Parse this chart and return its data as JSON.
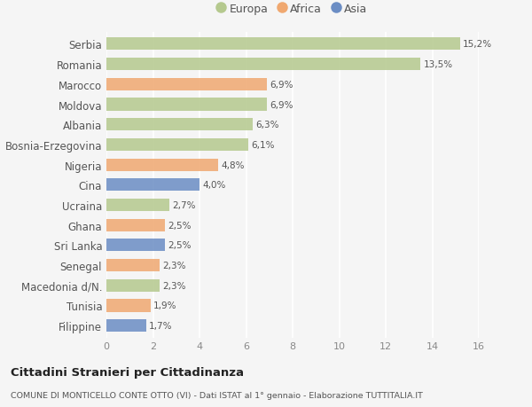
{
  "countries": [
    "Serbia",
    "Romania",
    "Marocco",
    "Moldova",
    "Albania",
    "Bosnia-Erzegovina",
    "Nigeria",
    "Cina",
    "Ucraina",
    "Ghana",
    "Sri Lanka",
    "Senegal",
    "Macedonia d/N.",
    "Tunisia",
    "Filippine"
  ],
  "values": [
    15.2,
    13.5,
    6.9,
    6.9,
    6.3,
    6.1,
    4.8,
    4.0,
    2.7,
    2.5,
    2.5,
    2.3,
    2.3,
    1.9,
    1.7
  ],
  "labels": [
    "15,2%",
    "13,5%",
    "6,9%",
    "6,9%",
    "6,3%",
    "6,1%",
    "4,8%",
    "4,0%",
    "2,7%",
    "2,5%",
    "2,5%",
    "2,3%",
    "2,3%",
    "1,9%",
    "1,7%"
  ],
  "continents": [
    "Europa",
    "Europa",
    "Africa",
    "Europa",
    "Europa",
    "Europa",
    "Africa",
    "Asia",
    "Europa",
    "Africa",
    "Asia",
    "Africa",
    "Europa",
    "Africa",
    "Asia"
  ],
  "colors": {
    "Europa": "#b5c98e",
    "Africa": "#f0a870",
    "Asia": "#6b8dc4"
  },
  "legend_order": [
    "Europa",
    "Africa",
    "Asia"
  ],
  "xlim": [
    0,
    16
  ],
  "xticks": [
    0,
    2,
    4,
    6,
    8,
    10,
    12,
    14,
    16
  ],
  "title_main": "Cittadini Stranieri per Cittadinanza",
  "title_sub": "COMUNE DI MONTICELLO CONTE OTTO (VI) - Dati ISTAT al 1° gennaio - Elaborazione TUTTITALIA.IT",
  "bg_color": "#f5f5f5",
  "plot_bg_color": "#f5f5f5",
  "grid_color": "#ffffff",
  "bar_height": 0.62,
  "figsize": [
    6.0,
    4.6
  ],
  "dpi": 100
}
